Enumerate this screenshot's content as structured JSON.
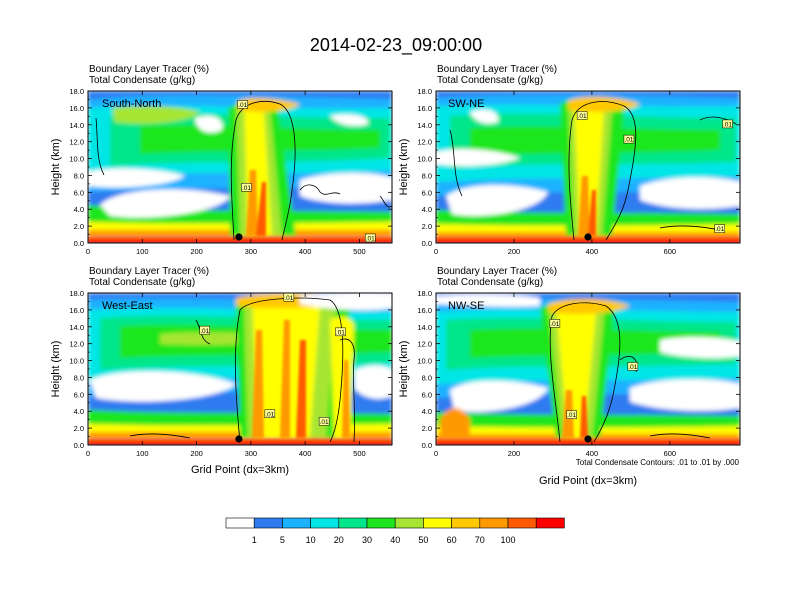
{
  "figure": {
    "title": "2014-02-23_09:00:00",
    "contour_note": "Total Condensate Contours: .01 to .01 by .000"
  },
  "colors": {
    "palette": [
      "#ffffff",
      "#2e7bf0",
      "#1ab2ff",
      "#00e6e6",
      "#00e68a",
      "#1ee61e",
      "#a6e633",
      "#ffff00",
      "#ffc800",
      "#ff9900",
      "#ff5a00",
      "#ff0000"
    ],
    "levels": [
      "1",
      "5",
      "10",
      "20",
      "30",
      "40",
      "50",
      "60",
      "70",
      "100"
    ]
  },
  "chart_data": [
    {
      "type": "heatmap",
      "panel": "South-North",
      "title_lines": [
        "Boundary Layer Tracer   (%)",
        "Total Condensate   (g/kg)"
      ],
      "xlabel": "",
      "ylabel": "Height (km)",
      "xlim": [
        0,
        560
      ],
      "ylim": [
        0,
        18
      ],
      "xticks": [
        "0",
        "100",
        "200",
        "300",
        "400",
        "500"
      ],
      "xtick_values": [
        0,
        100,
        200,
        300,
        400,
        500
      ],
      "yticks": [
        "0.0",
        "2.0",
        "4.0",
        "6.0",
        "8.0",
        "10.0",
        "12.0",
        "14.0",
        "16.0",
        "18.0"
      ],
      "marker_x": 278,
      "contour_labels": [
        {
          "x": 285,
          "y": 16.4,
          "text": ".01"
        },
        {
          "x": 292,
          "y": 6.6,
          "text": ".01"
        },
        {
          "x": 520,
          "y": 0.6,
          "text": ".01"
        }
      ]
    },
    {
      "type": "heatmap",
      "panel": "SW-NE",
      "title_lines": [
        "Boundary Layer Tracer   (%)",
        "Total Condensate   (g/kg)"
      ],
      "xlabel": "",
      "ylabel": "Height (km)",
      "xlim": [
        0,
        780
      ],
      "ylim": [
        0,
        18
      ],
      "xticks": [
        "0",
        "200",
        "400",
        "600"
      ],
      "xtick_values": [
        0,
        200,
        400,
        600
      ],
      "yticks": [
        "0.0",
        "2.0",
        "4.0",
        "6.0",
        "8.0",
        "10.0",
        "12.0",
        "14.0",
        "16.0",
        "18.0"
      ],
      "marker_x": 390,
      "contour_labels": [
        {
          "x": 375,
          "y": 15.1,
          "text": ".01"
        },
        {
          "x": 495,
          "y": 12.3,
          "text": ".01"
        },
        {
          "x": 748,
          "y": 14.1,
          "text": ".01"
        },
        {
          "x": 728,
          "y": 1.7,
          "text": ".01"
        }
      ]
    },
    {
      "type": "heatmap",
      "panel": "West-East",
      "title_lines": [
        "Boundary Layer Tracer   (%)",
        "Total Condensate   (g/kg)"
      ],
      "xlabel": "Grid Point (dx=3km)",
      "ylabel": "Height (km)",
      "xlim": [
        0,
        560
      ],
      "ylim": [
        0,
        18
      ],
      "xticks": [
        "0",
        "100",
        "200",
        "300",
        "400",
        "500"
      ],
      "xtick_values": [
        0,
        100,
        200,
        300,
        400,
        500
      ],
      "yticks": [
        "0.0",
        "2.0",
        "4.0",
        "6.0",
        "8.0",
        "10.0",
        "12.0",
        "14.0",
        "16.0",
        "18.0"
      ],
      "marker_x": 278,
      "contour_labels": [
        {
          "x": 215,
          "y": 13.6,
          "text": ".01"
        },
        {
          "x": 370,
          "y": 17.5,
          "text": ".01"
        },
        {
          "x": 465,
          "y": 13.4,
          "text": ".01"
        },
        {
          "x": 335,
          "y": 3.7,
          "text": ".01"
        },
        {
          "x": 435,
          "y": 2.8,
          "text": ".01"
        }
      ]
    },
    {
      "type": "heatmap",
      "panel": "NW-SE",
      "title_lines": [
        "Boundary Layer Tracer   (%)",
        "Total Condensate   (g/kg)"
      ],
      "xlabel": "Grid Point (dx=3km)",
      "ylabel": "Height (km)",
      "xlim": [
        0,
        780
      ],
      "ylim": [
        0,
        18
      ],
      "xticks": [
        "0",
        "200",
        "400",
        "600"
      ],
      "xtick_values": [
        0,
        200,
        400,
        600
      ],
      "yticks": [
        "0.0",
        "2.0",
        "4.0",
        "6.0",
        "8.0",
        "10.0",
        "12.0",
        "14.0",
        "16.0",
        "18.0"
      ],
      "marker_x": 390,
      "contour_labels": [
        {
          "x": 305,
          "y": 14.4,
          "text": ".01"
        },
        {
          "x": 505,
          "y": 9.3,
          "text": ".01"
        },
        {
          "x": 348,
          "y": 3.6,
          "text": ".01"
        }
      ]
    }
  ]
}
